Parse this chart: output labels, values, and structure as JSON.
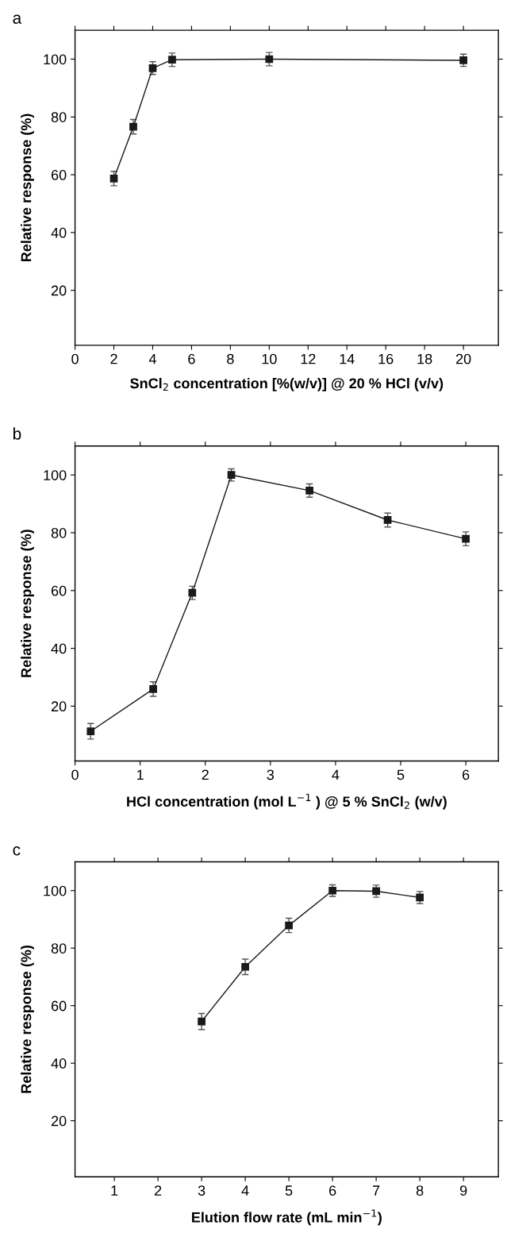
{
  "chart_data": [
    {
      "type": "line",
      "title": "a",
      "xlabel": "SnCl$_{2}$ concentration [%(w/v)] @ 20 % HCl (v/v)",
      "ylabel": "Relative response (%)",
      "marker": "square",
      "grid": false,
      "legend": false,
      "series": [
        {
          "color": "#1a1a1a",
          "x": [
            2,
            3,
            4,
            5,
            10,
            20
          ],
          "values": [
            58.7,
            76.6,
            96.9,
            99.8,
            100,
            99.6
          ],
          "errors": [
            2.5,
            2.5,
            2.2,
            2.3,
            2.3,
            2.1
          ]
        }
      ],
      "xlim": [
        0,
        21.8
      ],
      "xticks": [
        0,
        2,
        4,
        6,
        8,
        10,
        12,
        14,
        16,
        18,
        20
      ],
      "ylim": [
        1,
        110
      ],
      "yticks": [
        20,
        40,
        60,
        80,
        100
      ]
    },
    {
      "type": "line",
      "title": "b",
      "xlabel": "HCl concentration (mol L$^{−1}$ ) @ 5 % SnCl$_{2}$ (w/v)",
      "ylabel": "Relative response (%)",
      "marker": "square",
      "grid": false,
      "legend": false,
      "series": [
        {
          "color": "#1a1a1a",
          "x": [
            0.24,
            1.2,
            1.8,
            2.4,
            3.6,
            4.8,
            6.0
          ],
          "values": [
            11.3,
            25.9,
            59.2,
            100,
            94.6,
            84.4,
            77.9
          ],
          "errors": [
            2.7,
            2.5,
            2.3,
            2.1,
            2.3,
            2.4,
            2.4
          ]
        }
      ],
      "xlim": [
        0,
        6.5
      ],
      "xticks": [
        0,
        1,
        2,
        3,
        4,
        5,
        6
      ],
      "ylim": [
        1,
        110
      ],
      "yticks": [
        20,
        40,
        60,
        80,
        100
      ]
    },
    {
      "type": "line",
      "title": "c",
      "xlabel": "Elution flow rate (mL min$^{−1}$)",
      "ylabel": "Relative response (%)",
      "marker": "square",
      "grid": false,
      "legend": false,
      "series": [
        {
          "color": "#1a1a1a",
          "x": [
            3,
            4,
            5,
            6,
            7,
            8
          ],
          "values": [
            54.5,
            73.5,
            87.9,
            100,
            99.8,
            97.6
          ],
          "errors": [
            2.8,
            2.7,
            2.5,
            2.0,
            2.1,
            2.1
          ]
        }
      ],
      "xlim": [
        0.1,
        9.8
      ],
      "xticks": [
        1,
        2,
        3,
        4,
        5,
        6,
        7,
        8,
        9
      ],
      "ylim": [
        0.5,
        110
      ],
      "yticks": [
        20,
        40,
        60,
        80,
        100
      ]
    }
  ]
}
